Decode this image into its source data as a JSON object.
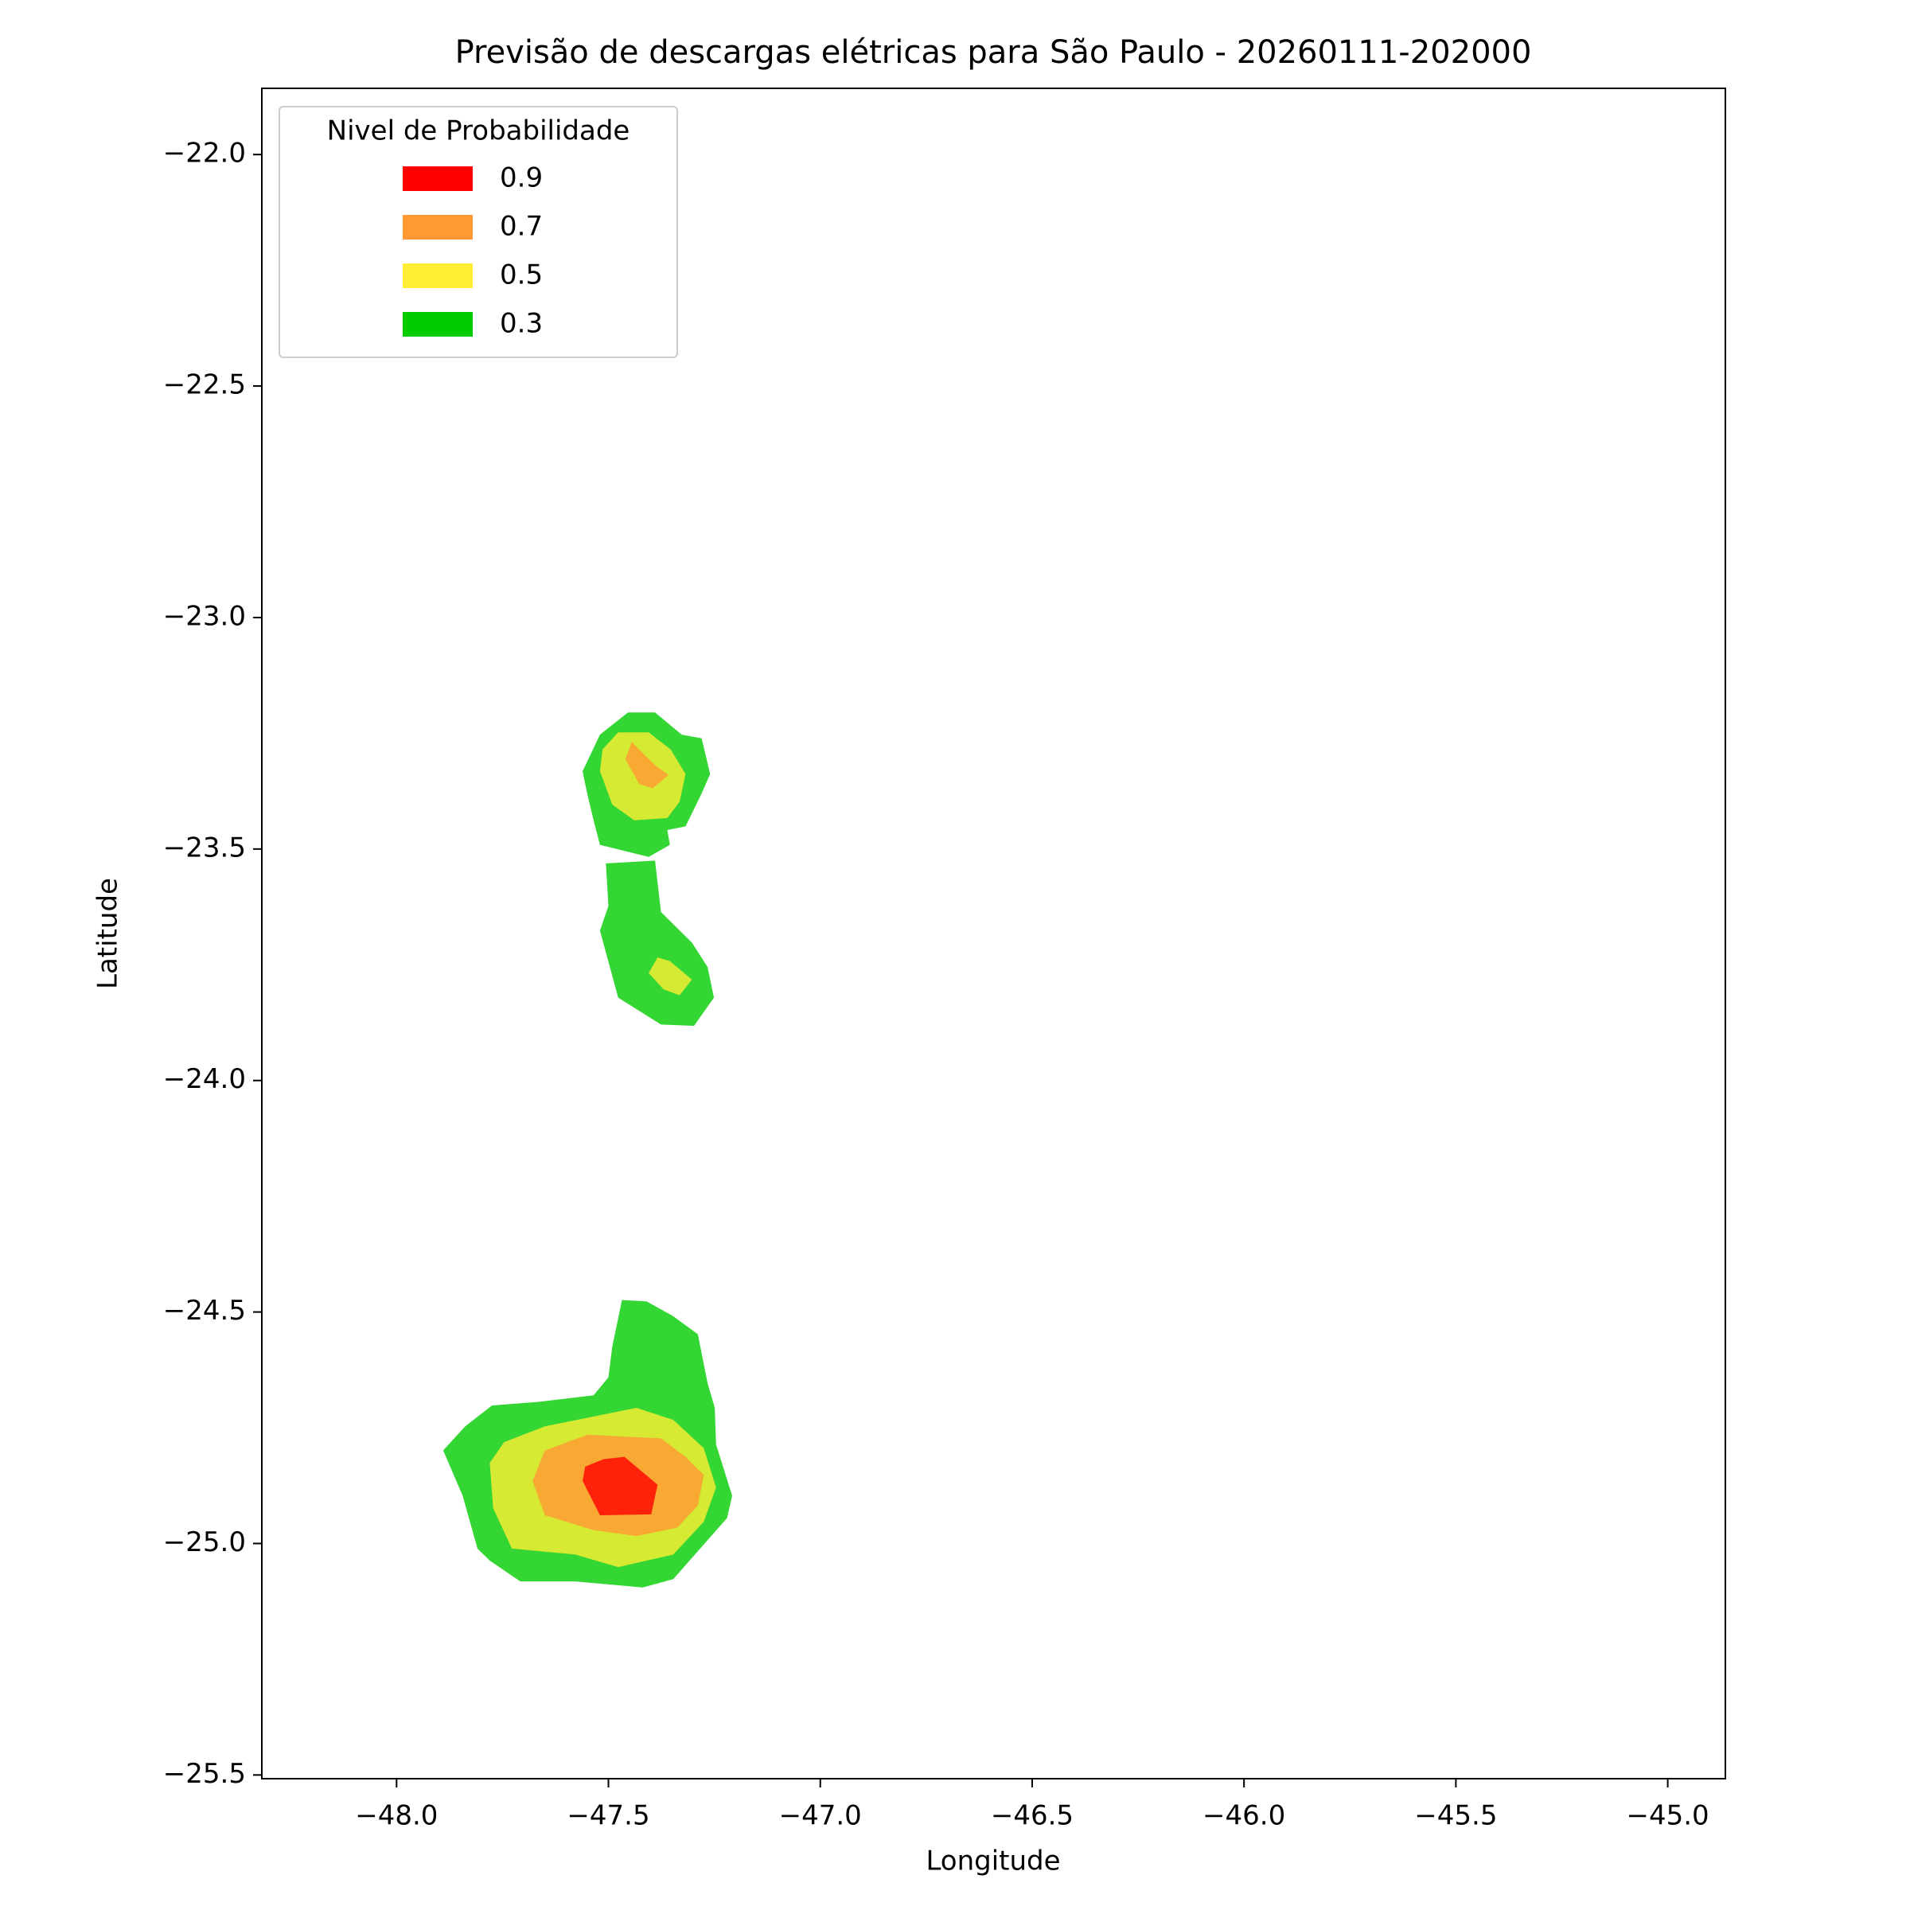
{
  "chart_data": {
    "type": "contour",
    "title": "Previsão de descargas elétricas para São Paulo - 20260111-202000",
    "x_label": "Longitude",
    "y_label": "Latitude",
    "xlim": [
      -48.318,
      -44.864
    ],
    "ylim": [
      -25.508,
      -21.857
    ],
    "xticks": [
      {
        "value": -48.0,
        "label": "−48.0"
      },
      {
        "value": -47.5,
        "label": "−47.5"
      },
      {
        "value": -47.0,
        "label": "−47.0"
      },
      {
        "value": -46.5,
        "label": "−46.5"
      },
      {
        "value": -46.0,
        "label": "−46.0"
      },
      {
        "value": -45.5,
        "label": "−45.5"
      },
      {
        "value": -45.0,
        "label": "−45.0"
      }
    ],
    "yticks": [
      {
        "value": -22.0,
        "label": "−22.0"
      },
      {
        "value": -22.5,
        "label": "−22.5"
      },
      {
        "value": -23.0,
        "label": "−23.0"
      },
      {
        "value": -23.5,
        "label": "−23.5"
      },
      {
        "value": -24.0,
        "label": "−24.0"
      },
      {
        "value": -24.5,
        "label": "−24.5"
      },
      {
        "value": -25.0,
        "label": "−25.0"
      },
      {
        "value": -25.5,
        "label": "−25.5"
      }
    ],
    "legend_title": "Nivel de Probabilidade",
    "legend": "upper left",
    "alpha": 0.8,
    "series": [
      {
        "name": "0.9",
        "color": "#ff0000",
        "polygons": [
          {
            "lon": [
              -47.512,
              -47.462,
              -47.384,
              -47.399,
              -47.52,
              -47.561,
              -47.555
            ],
            "lat": [
              -24.818,
              -24.813,
              -24.873,
              -24.937,
              -24.939,
              -24.865,
              -24.834
            ]
          }
        ]
      },
      {
        "name": "0.7",
        "color": "#ff9933",
        "polygons": [
          {
            "lon": [
              -47.445,
              -47.419,
              -47.39,
              -47.358,
              -47.396,
              -47.428,
              -47.46
            ],
            "lat": [
              -23.269,
              -23.293,
              -23.319,
              -23.34,
              -23.369,
              -23.359,
              -23.306
            ]
          },
          {
            "lon": [
              -47.549,
              -47.376,
              -47.318,
              -47.275,
              -47.289,
              -47.338,
              -47.434,
              -47.535,
              -47.65,
              -47.679,
              -47.65
            ],
            "lat": [
              -24.765,
              -24.773,
              -24.813,
              -24.852,
              -24.918,
              -24.966,
              -24.984,
              -24.971,
              -24.939,
              -24.865,
              -24.799
            ]
          }
        ]
      },
      {
        "name": "0.5",
        "color": "#ffee33",
        "polygons": [
          {
            "lon": [
              -47.477,
              -47.405,
              -47.353,
              -47.318,
              -47.332,
              -47.361,
              -47.439,
              -47.491,
              -47.52,
              -47.514
            ],
            "lat": [
              -23.248,
              -23.248,
              -23.285,
              -23.338,
              -23.398,
              -23.433,
              -23.438,
              -23.404,
              -23.332,
              -23.285
            ]
          },
          {
            "lon": [
              -47.384,
              -47.355,
              -47.303,
              -47.332,
              -47.37,
              -47.405
            ],
            "lat": [
              -23.734,
              -23.742,
              -23.782,
              -23.816,
              -23.803,
              -23.768
            ]
          },
          {
            "lon": [
              -47.65,
              -47.434,
              -47.347,
              -47.275,
              -47.246,
              -47.275,
              -47.347,
              -47.477,
              -47.578,
              -47.728,
              -47.772,
              -47.78,
              -47.746
            ],
            "lat": [
              -24.747,
              -24.707,
              -24.733,
              -24.794,
              -24.879,
              -24.953,
              -25.024,
              -25.051,
              -25.024,
              -25.011,
              -24.924,
              -24.826,
              -24.781
            ]
          }
        ]
      },
      {
        "name": "0.3",
        "color": "#00cc00",
        "polygons": [
          {
            "lon": [
              -47.454,
              -47.39,
              -47.327,
              -47.28,
              -47.26,
              -47.28,
              -47.318,
              -47.361,
              -47.355,
              -47.405,
              -47.52,
              -47.535,
              -47.549,
              -47.561,
              -47.52
            ],
            "lat": [
              -23.205,
              -23.205,
              -23.253,
              -23.261,
              -23.338,
              -23.38,
              -23.451,
              -23.459,
              -23.491,
              -23.517,
              -23.491,
              -23.438,
              -23.385,
              -23.332,
              -23.253
            ]
          },
          {
            "lon": [
              -47.506,
              -47.39,
              -47.376,
              -47.303,
              -47.266,
              -47.251,
              -47.298,
              -47.376,
              -47.477,
              -47.52,
              -47.5
            ],
            "lat": [
              -23.531,
              -23.525,
              -23.636,
              -23.702,
              -23.755,
              -23.821,
              -23.882,
              -23.879,
              -23.821,
              -23.676,
              -23.623
            ]
          },
          {
            "lon": [
              -47.468,
              -47.41,
              -47.347,
              -47.289,
              -47.266,
              -47.249,
              -47.246,
              -47.208,
              -47.22,
              -47.347,
              -47.419,
              -47.578,
              -47.708,
              -47.78,
              -47.809,
              -47.844,
              -47.89,
              -47.838,
              -47.775,
              -47.665,
              -47.535,
              -47.5,
              -47.491
            ],
            "lat": [
              -24.474,
              -24.477,
              -24.509,
              -24.548,
              -24.654,
              -24.707,
              -24.786,
              -24.897,
              -24.945,
              -25.077,
              -25.095,
              -25.082,
              -25.082,
              -25.037,
              -25.011,
              -24.897,
              -24.799,
              -24.747,
              -24.702,
              -24.694,
              -24.68,
              -24.641,
              -24.575
            ]
          }
        ]
      }
    ]
  }
}
